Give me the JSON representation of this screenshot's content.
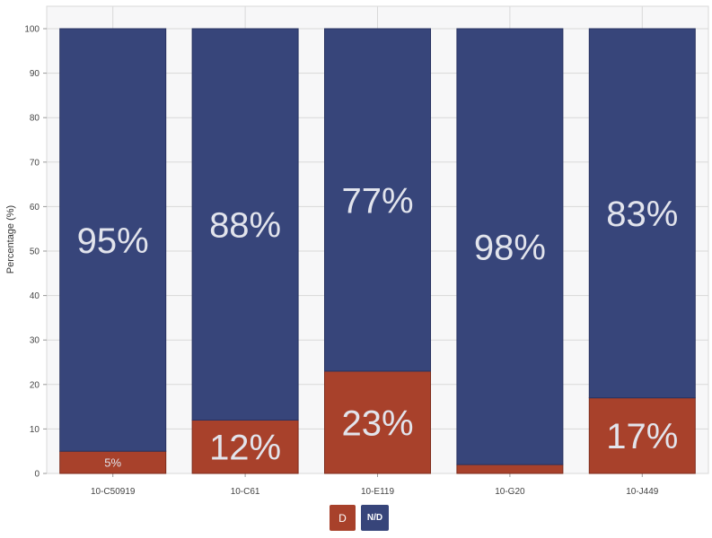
{
  "chart_data": {
    "type": "bar",
    "stacked": true,
    "ylabel": "Percentage (%)",
    "ylim": [
      0,
      100
    ],
    "yticks": [
      0,
      10,
      20,
      30,
      40,
      50,
      60,
      70,
      80,
      90,
      100
    ],
    "grid": true,
    "categories": [
      "10-C50919",
      "10-C61",
      "10-E119",
      "10-G20",
      "10-J449"
    ],
    "series": [
      {
        "name": "D",
        "color": "#a8412b",
        "values": [
          5,
          12,
          23,
          2,
          17
        ],
        "labels": [
          "5%",
          "12%",
          "23%",
          "",
          "17%"
        ]
      },
      {
        "name": "N/D",
        "color": "#37457a",
        "values": [
          95,
          88,
          77,
          98,
          83
        ],
        "labels": [
          "95%",
          "88%",
          "77%",
          "98%",
          "83%"
        ]
      }
    ],
    "legend_position": "bottom-center"
  }
}
